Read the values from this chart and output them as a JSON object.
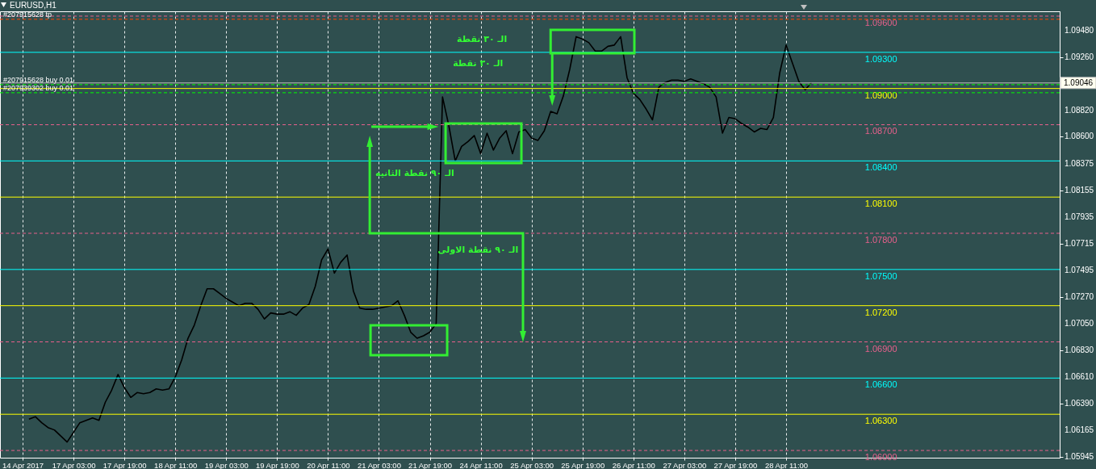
{
  "chart_data": {
    "type": "line",
    "title": "EURUSD,H1",
    "categories": [
      "14 Apr 2017",
      null,
      null,
      null,
      null,
      null,
      null,
      null,
      "17 Apr 03:00",
      null,
      null,
      null,
      null,
      null,
      null,
      null,
      "17 Apr 19:00",
      null,
      null,
      null,
      null,
      null,
      null,
      null,
      "18 Apr 11:00",
      null,
      null,
      null,
      null,
      null,
      null,
      null,
      "19 Apr 03:00",
      null,
      null,
      null,
      null,
      null,
      null,
      null,
      "19 Apr 19:00",
      null,
      null,
      null,
      null,
      null,
      null,
      null,
      "20 Apr 11:00",
      null,
      null,
      null,
      null,
      null,
      null,
      null,
      "21 Apr 03:00",
      null,
      null,
      null,
      null,
      null,
      null,
      null,
      "21 Apr 19:00",
      null,
      null,
      null,
      null,
      null,
      null,
      null,
      "24 Apr 11:00",
      null,
      null,
      null,
      null,
      null,
      null,
      null,
      "25 Apr 03:00",
      null,
      null,
      null,
      null,
      null,
      null,
      null,
      "25 Apr 19:00",
      null,
      null,
      null,
      null,
      null,
      null,
      null,
      "26 Apr 11:00",
      null,
      null,
      null,
      null,
      null,
      null,
      null,
      "27 Apr 03:00",
      null,
      null,
      null,
      null,
      null,
      null,
      null,
      "27 Apr 19:00",
      null,
      null,
      null,
      null,
      null,
      null,
      null,
      "28 Apr 11:00",
      null,
      null,
      null,
      null,
      null,
      null,
      null,
      null,
      null,
      null,
      null,
      null,
      null,
      null,
      null,
      null,
      null,
      null,
      null,
      null,
      null,
      null,
      null,
      null,
      null,
      null,
      null,
      null,
      null,
      null,
      null,
      null,
      null,
      null,
      null,
      null,
      null,
      null,
      null,
      null,
      null,
      null,
      null
    ],
    "series": [
      {
        "color": "#000000",
        "line_style": "solid",
        "values": [
          null,
          1.0626,
          1.0628,
          1.0623,
          1.0619,
          1.0617,
          1.0612,
          1.0607,
          1.0615,
          1.0623,
          1.0625,
          1.0627,
          1.0625,
          1.064,
          1.065,
          1.0663,
          1.0652,
          1.0644,
          1.0648,
          1.0647,
          1.0648,
          1.0651,
          1.065,
          1.0651,
          1.0661,
          1.0675,
          1.0693,
          1.0704,
          1.072,
          1.0734,
          1.0734,
          1.073,
          1.0726,
          1.0723,
          1.072,
          1.0722,
          1.0722,
          1.0717,
          1.0709,
          1.0714,
          1.0713,
          1.0713,
          1.0715,
          1.0712,
          1.0718,
          1.0721,
          1.0736,
          1.0758,
          1.0767,
          1.0747,
          1.0756,
          1.0762,
          1.0732,
          1.0718,
          1.0717,
          1.0717,
          1.0718,
          1.0719,
          1.072,
          1.0724,
          1.0712,
          1.0698,
          1.0693,
          1.0695,
          1.0698,
          1.0705,
          1.0893,
          1.0869,
          1.084,
          1.0852,
          1.0856,
          1.0861,
          1.0846,
          1.0863,
          1.0849,
          1.0859,
          1.0865,
          1.0846,
          1.0864,
          1.0866,
          1.0859,
          1.0857,
          1.0865,
          1.0881,
          1.0879,
          1.0894,
          1.0916,
          1.0943,
          1.0941,
          1.0938,
          1.0931,
          1.0931,
          1.0935,
          1.0936,
          1.0943,
          1.0909,
          1.0896,
          1.0891,
          1.0883,
          1.0874,
          1.0901,
          1.0905,
          1.0907,
          1.0907,
          1.0906,
          1.0908,
          1.0906,
          1.0904,
          1.0901,
          1.0893,
          1.0863,
          1.0876,
          1.0875,
          1.0871,
          1.0868,
          1.0864,
          1.0867,
          1.0866,
          1.0876,
          1.0913,
          1.0936,
          1.0921,
          1.0906,
          1.0899,
          1.0905,
          null,
          null,
          null,
          null,
          null,
          null,
          null,
          null,
          null,
          null,
          null,
          null,
          null,
          null,
          null,
          null,
          null,
          null,
          null,
          null,
          null,
          null,
          null,
          null,
          null,
          null,
          null,
          null,
          null,
          null,
          null,
          null,
          null,
          null,
          null,
          null,
          null,
          null,
          null
        ]
      }
    ],
    "ylim": [
      1.0594,
      1.0964
    ],
    "yticks": [
      {
        "value": 1.0948,
        "label": "1.09480"
      },
      {
        "value": 1.0926,
        "label": "1.09260"
      },
      {
        "value": 1.0882,
        "label": "1.08820"
      },
      {
        "value": 1.086,
        "label": "1.08600"
      },
      {
        "value": 1.08375,
        "label": "1.08375"
      },
      {
        "value": 1.08155,
        "label": "1.08155"
      },
      {
        "value": 1.07935,
        "label": "1.07935"
      },
      {
        "value": 1.07715,
        "label": "1.07715"
      },
      {
        "value": 1.07495,
        "label": "1.07495"
      },
      {
        "value": 1.0727,
        "label": "1.07270"
      },
      {
        "value": 1.0705,
        "label": "1.07050"
      },
      {
        "value": 1.0683,
        "label": "1.06830"
      },
      {
        "value": 1.0661,
        "label": "1.06610"
      },
      {
        "value": 1.0639,
        "label": "1.06390"
      },
      {
        "value": 1.06165,
        "label": "1.06165"
      },
      {
        "value": 1.05945,
        "label": "1.05945"
      }
    ],
    "grid": "x",
    "ref_lines": [
      {
        "axis": "y",
        "value": 1.096,
        "label": "1.09600",
        "color": "#e8608c",
        "line_style": "dashed"
      },
      {
        "axis": "y",
        "value": 1.093,
        "label": "1.09300",
        "color": "#00ffff",
        "line_style": "solid"
      },
      {
        "axis": "y",
        "value": 1.09,
        "label": "1.09000",
        "color": "#ffff00",
        "line_style": "solid"
      },
      {
        "axis": "y",
        "value": 1.087,
        "label": "1.08700",
        "color": "#e8608c",
        "line_style": "dashed"
      },
      {
        "axis": "y",
        "value": 1.084,
        "label": "1.08400",
        "color": "#00ffff",
        "line_style": "solid"
      },
      {
        "axis": "y",
        "value": 1.081,
        "label": "1.08100",
        "color": "#ffff00",
        "line_style": "solid"
      },
      {
        "axis": "y",
        "value": 1.078,
        "label": "1.07800",
        "color": "#e8608c",
        "line_style": "dashed"
      },
      {
        "axis": "y",
        "value": 1.075,
        "label": "1.07500",
        "color": "#00ffff",
        "line_style": "solid"
      },
      {
        "axis": "y",
        "value": 1.072,
        "label": "1.07200",
        "color": "#ffff00",
        "line_style": "solid"
      },
      {
        "axis": "y",
        "value": 1.069,
        "label": "1.06900",
        "color": "#e8608c",
        "line_style": "dashed"
      },
      {
        "axis": "y",
        "value": 1.066,
        "label": "1.06600",
        "color": "#00ffff",
        "line_style": "solid"
      },
      {
        "axis": "y",
        "value": 1.063,
        "label": "1.06300",
        "color": "#ffff00",
        "line_style": "solid"
      },
      {
        "axis": "y",
        "value": 1.06,
        "label": "1.06000",
        "color": "#e8608c",
        "line_style": "dashed"
      },
      {
        "axis": "y",
        "value": 1.09574,
        "label": "#207915628 tp",
        "color": "#ff4500",
        "line_style": "dashed"
      },
      {
        "axis": "y",
        "value": 1.09032,
        "label": "#207915628 buy 0.01",
        "color": "#00ff00",
        "line_style": "dashed"
      },
      {
        "axis": "y",
        "value": 1.08965,
        "label": "#207939302 buy 0.01",
        "color": "#00ff00",
        "line_style": "dashed"
      },
      {
        "axis": "y",
        "value": 1.09046,
        "label": "1.09046",
        "color": "#c0c0c0",
        "line_style": "solid"
      }
    ],
    "annotations": [
      "الـ ٣٠ نقطة",
      "الـ ٣٠ نقطة",
      "الـ ٩٠ نقطة الثانيه",
      "الـ ٩٠ نقطة الاولى"
    ]
  }
}
